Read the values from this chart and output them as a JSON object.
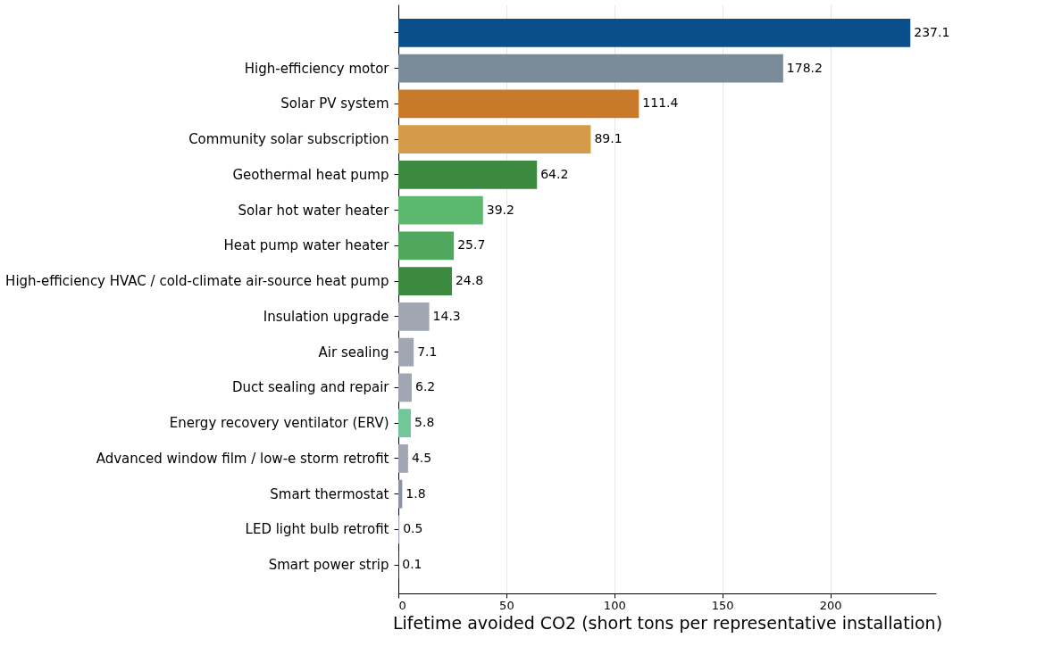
{
  "chart_data": {
    "type": "bar",
    "orientation": "horizontal",
    "xlabel": "Lifetime avoided CO2 (short tons per representative installation)",
    "categories": [
      null,
      "High-efficiency motor",
      "Solar PV system",
      "Community solar subscription",
      "Geothermal heat pump",
      "Solar hot water heater",
      "Heat pump water heater",
      "High-efficiency HVAC / cold-climate air-source heat pump",
      "Insulation upgrade",
      "Air sealing",
      "Duct sealing and repair",
      "Energy recovery ventilator (ERV)",
      "Advanced window film / low-e storm retrofit",
      "Smart thermostat",
      "LED light bulb retrofit",
      "Smart power strip"
    ],
    "values": [
      237.1,
      178.2,
      111.4,
      89.1,
      64.2,
      39.2,
      25.7,
      24.8,
      14.3,
      7.1,
      6.2,
      5.8,
      4.5,
      1.8,
      0.5,
      0.1
    ],
    "colors": [
      "#0b4f8a",
      "#7a8a99",
      "#c87a2a",
      "#d49b4a",
      "#3b8a3f",
      "#5cb86e",
      "#4fa85e",
      "#3b8a3f",
      "#a0a6b2",
      "#a0a6b2",
      "#a0a6b2",
      "#72c79a",
      "#a0a6b2",
      "#8a93a8",
      "#a0a6b2",
      "#a0a6b2"
    ],
    "xlim": [
      0,
      249
    ],
    "xticks": [
      0,
      50,
      100,
      150,
      200
    ],
    "grid": "x",
    "data_labels": true
  }
}
